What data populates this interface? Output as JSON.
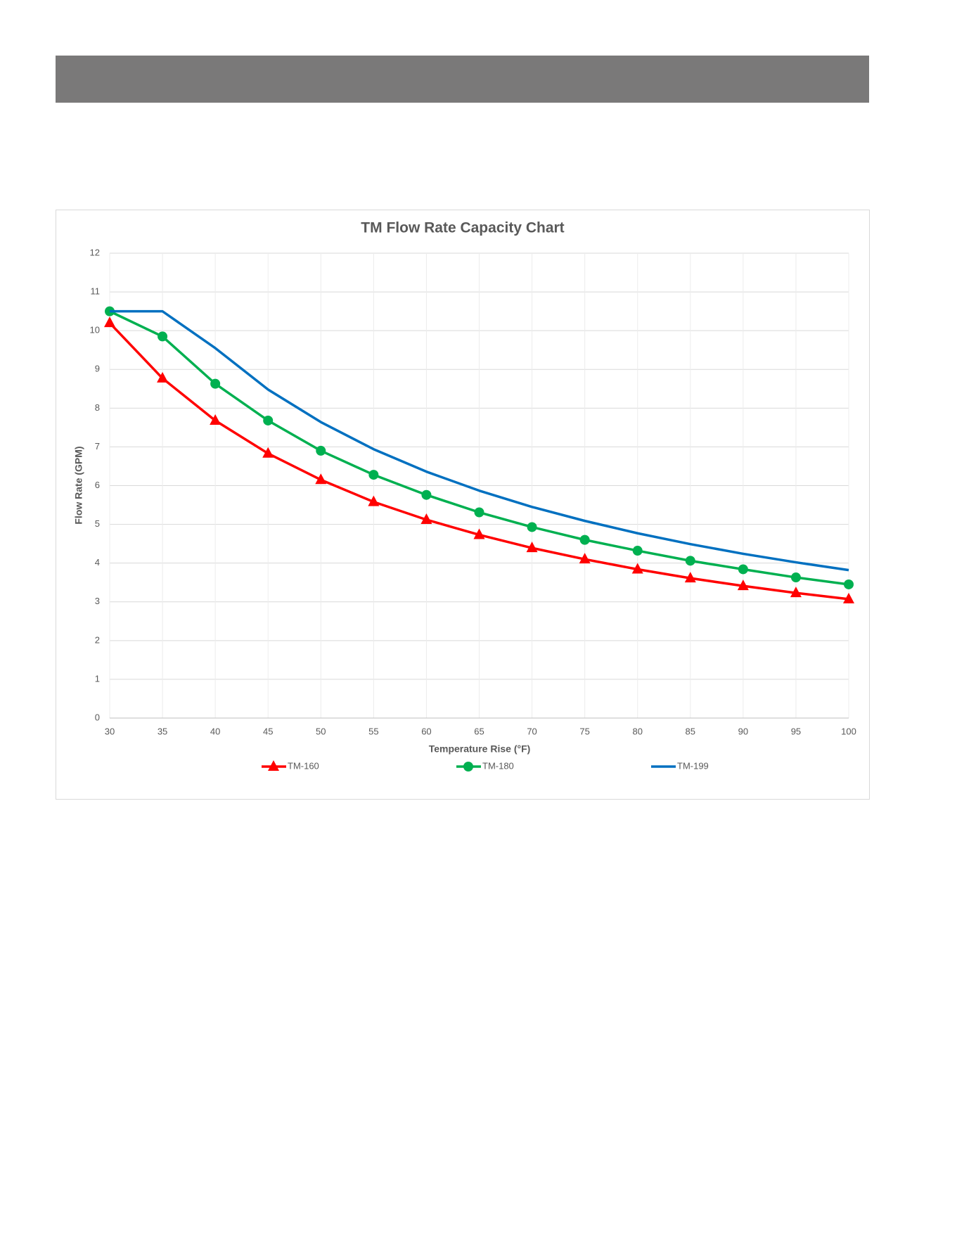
{
  "chart_data": {
    "type": "line",
    "title": "TM Flow Rate Capacity Chart",
    "x_label": "Temperature Rise (°F)",
    "y_label": "Flow Rate (GPM)",
    "x": [
      30,
      35,
      40,
      45,
      50,
      55,
      60,
      65,
      70,
      75,
      80,
      85,
      90,
      95,
      100
    ],
    "series": [
      {
        "name": "TM-160",
        "color": "#ff0000",
        "marker": "triangle",
        "values": [
          10.2,
          8.77,
          7.68,
          6.83,
          6.15,
          5.58,
          5.12,
          4.73,
          4.39,
          4.1,
          3.84,
          3.61,
          3.41,
          3.23,
          3.07
        ]
      },
      {
        "name": "TM-180",
        "color": "#00b050",
        "marker": "circle",
        "values": [
          10.5,
          9.85,
          8.63,
          7.68,
          6.9,
          6.28,
          5.76,
          5.31,
          4.93,
          4.6,
          4.32,
          4.06,
          3.84,
          3.63,
          3.45
        ]
      },
      {
        "name": "TM-199",
        "color": "#0070c0",
        "marker": "none",
        "values": [
          10.5,
          10.5,
          9.55,
          8.48,
          7.64,
          6.94,
          6.36,
          5.87,
          5.45,
          5.09,
          4.77,
          4.49,
          4.24,
          4.02,
          3.82
        ]
      }
    ],
    "xlim": [
      30,
      100
    ],
    "xticks": [
      30,
      35,
      40,
      45,
      50,
      55,
      60,
      65,
      70,
      75,
      80,
      85,
      90,
      95,
      100
    ],
    "ylim": [
      0,
      12
    ],
    "yticks": [
      0,
      1,
      2,
      3,
      4,
      5,
      6,
      7,
      8,
      9,
      10,
      11,
      12
    ],
    "grid": true,
    "legend": "bottom"
  }
}
